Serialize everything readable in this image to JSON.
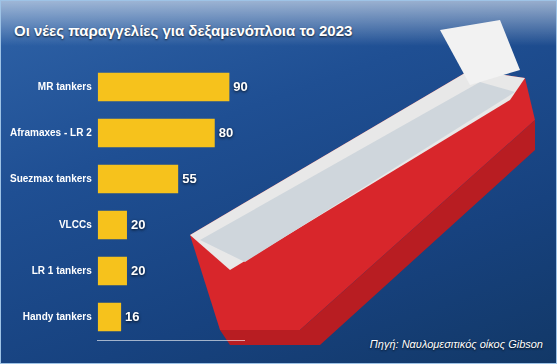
{
  "chart_data": {
    "type": "bar",
    "title": "Οι νέες παραγγελίες για δεξαμενόπλοια το 2023",
    "source": "Πηγή: Ναυλομεσιτικός οίκος Gibson",
    "categories": [
      "MR tankers",
      "Aframaxes - LR 2",
      "Suezmax tankers",
      "VLCCs",
      "LR 1 tankers",
      "Handy tankers"
    ],
    "values": [
      90,
      80,
      55,
      20,
      20,
      16
    ],
    "color": "#f6c21c",
    "orientation": "horizontal",
    "data_labels": true,
    "tick_labels": "y",
    "grid": false,
    "xlim": [
      0,
      100
    ]
  }
}
